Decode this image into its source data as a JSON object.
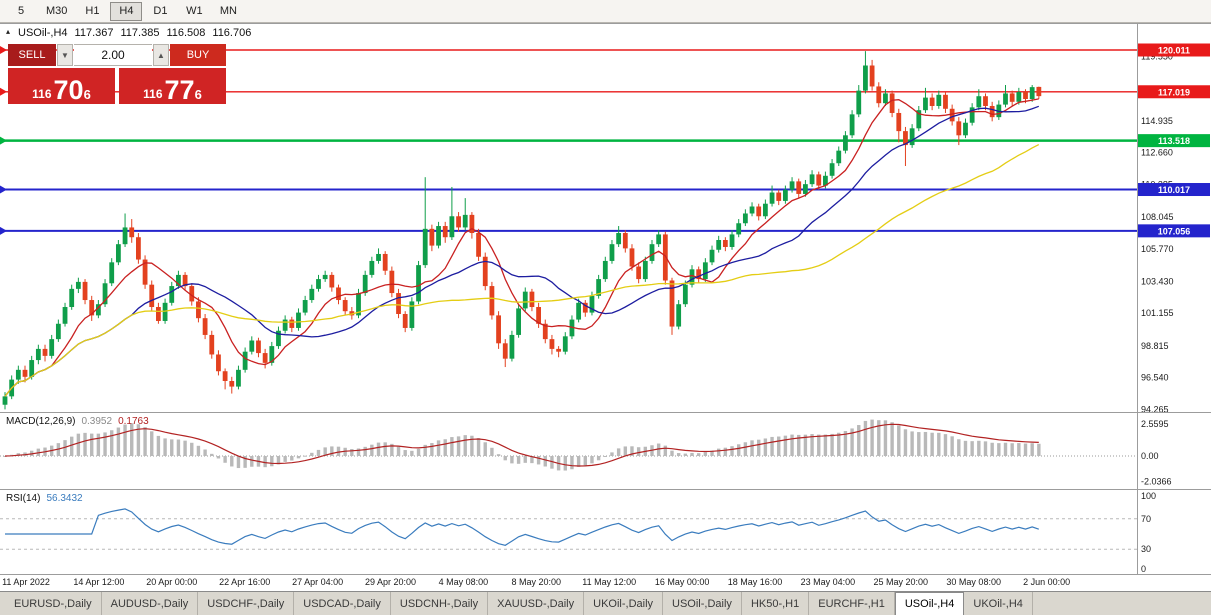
{
  "toolbar": {
    "timeframes": [
      {
        "label": "5",
        "active": false
      },
      {
        "label": "M30",
        "active": false
      },
      {
        "label": "H1",
        "active": false
      },
      {
        "label": "H4",
        "active": true
      },
      {
        "label": "D1",
        "active": false
      },
      {
        "label": "W1",
        "active": false
      },
      {
        "label": "MN",
        "active": false
      }
    ]
  },
  "chart_header": {
    "symbol": "USOil-,H4",
    "open": "117.367",
    "high": "117.385",
    "low": "116.508",
    "close": "116.706",
    "toggle_icon": "▴"
  },
  "trade_panel": {
    "sell_label": "SELL",
    "buy_label": "BUY",
    "volume": "2.00",
    "bid": {
      "small": "116",
      "big": "70",
      "sup": "6"
    },
    "ask": {
      "small": "116",
      "big": "77",
      "sup": "6"
    }
  },
  "chart_data": {
    "type": "candlestick",
    "symbol": "USOil-,H4",
    "timeframe": "H4",
    "current_bar": {
      "open": 117.367,
      "high": 117.385,
      "low": 116.508,
      "close": 116.706
    },
    "ylim": [
      94.265,
      121.3
    ],
    "grid": false,
    "candles": [
      [
        94.6,
        95.5,
        94.27,
        95.2
      ],
      [
        95.2,
        96.7,
        95.0,
        96.4
      ],
      [
        96.4,
        97.4,
        96.1,
        97.1
      ],
      [
        97.1,
        97.4,
        96.2,
        96.6
      ],
      [
        96.6,
        98.1,
        96.4,
        97.8
      ],
      [
        97.8,
        98.9,
        97.5,
        98.6
      ],
      [
        98.6,
        98.9,
        97.7,
        98.1
      ],
      [
        98.1,
        99.6,
        97.9,
        99.3
      ],
      [
        99.3,
        100.7,
        99.1,
        100.4
      ],
      [
        100.4,
        101.9,
        100.2,
        101.6
      ],
      [
        101.6,
        103.2,
        101.4,
        102.9
      ],
      [
        102.9,
        103.7,
        102.6,
        103.4
      ],
      [
        103.4,
        103.6,
        101.8,
        102.1
      ],
      [
        102.1,
        102.4,
        100.6,
        101.0
      ],
      [
        101.0,
        102.1,
        100.8,
        101.8
      ],
      [
        101.8,
        103.6,
        101.6,
        103.3
      ],
      [
        103.3,
        105.1,
        103.1,
        104.8
      ],
      [
        104.8,
        106.4,
        104.6,
        106.1
      ],
      [
        106.1,
        108.3,
        105.9,
        107.3
      ],
      [
        107.3,
        107.9,
        106.2,
        106.6
      ],
      [
        106.6,
        106.9,
        104.7,
        105.0
      ],
      [
        105.0,
        105.3,
        102.9,
        103.2
      ],
      [
        103.2,
        103.5,
        101.3,
        101.6
      ],
      [
        101.6,
        101.9,
        100.4,
        100.6
      ],
      [
        100.6,
        102.2,
        100.4,
        101.9
      ],
      [
        101.9,
        103.4,
        101.7,
        103.1
      ],
      [
        103.1,
        104.2,
        102.9,
        103.9
      ],
      [
        103.9,
        104.1,
        102.8,
        103.1
      ],
      [
        103.1,
        103.3,
        101.7,
        102.0
      ],
      [
        102.0,
        102.3,
        100.5,
        100.8
      ],
      [
        100.8,
        101.1,
        99.3,
        99.6
      ],
      [
        99.6,
        99.9,
        97.9,
        98.2
      ],
      [
        98.2,
        98.5,
        96.7,
        97.0
      ],
      [
        97.0,
        97.2,
        95.7,
        96.3
      ],
      [
        96.3,
        96.6,
        95.4,
        95.9
      ],
      [
        95.9,
        97.4,
        95.7,
        97.1
      ],
      [
        97.1,
        98.7,
        96.9,
        98.4
      ],
      [
        98.4,
        99.5,
        98.2,
        99.2
      ],
      [
        99.2,
        99.4,
        98.0,
        98.3
      ],
      [
        98.3,
        98.6,
        97.2,
        97.6
      ],
      [
        97.6,
        99.1,
        97.4,
        98.8
      ],
      [
        98.8,
        100.2,
        98.6,
        99.9
      ],
      [
        99.9,
        101.0,
        99.7,
        100.7
      ],
      [
        100.7,
        100.9,
        99.8,
        100.1
      ],
      [
        100.1,
        101.5,
        99.9,
        101.2
      ],
      [
        101.2,
        102.4,
        101.0,
        102.1
      ],
      [
        102.1,
        103.2,
        101.9,
        102.9
      ],
      [
        102.9,
        103.9,
        102.7,
        103.6
      ],
      [
        103.6,
        104.2,
        103.4,
        103.9
      ],
      [
        103.9,
        104.1,
        102.7,
        103.0
      ],
      [
        103.0,
        103.2,
        101.8,
        102.1
      ],
      [
        102.1,
        102.3,
        101.0,
        101.3
      ],
      [
        101.3,
        101.6,
        100.7,
        101.0
      ],
      [
        101.0,
        102.9,
        100.8,
        102.6
      ],
      [
        102.6,
        104.2,
        102.4,
        103.9
      ],
      [
        103.9,
        105.2,
        103.7,
        104.9
      ],
      [
        104.9,
        105.8,
        104.7,
        105.4
      ],
      [
        105.4,
        105.6,
        103.9,
        104.2
      ],
      [
        104.2,
        104.5,
        102.3,
        102.6
      ],
      [
        102.6,
        102.9,
        100.8,
        101.1
      ],
      [
        101.1,
        101.3,
        99.8,
        100.1
      ],
      [
        100.1,
        102.3,
        99.9,
        102.0
      ],
      [
        102.0,
        104.9,
        101.8,
        104.6
      ],
      [
        104.6,
        110.9,
        104.4,
        107.2
      ],
      [
        107.2,
        107.5,
        105.6,
        106.0
      ],
      [
        106.0,
        107.7,
        105.8,
        107.4
      ],
      [
        107.4,
        107.7,
        106.2,
        106.6
      ],
      [
        106.6,
        110.2,
        106.4,
        108.1
      ],
      [
        108.1,
        108.4,
        107.0,
        107.3
      ],
      [
        107.3,
        109.4,
        107.1,
        108.2
      ],
      [
        108.2,
        108.4,
        106.5,
        106.9
      ],
      [
        106.9,
        107.2,
        104.9,
        105.2
      ],
      [
        105.2,
        105.5,
        102.8,
        103.1
      ],
      [
        103.1,
        103.4,
        100.7,
        101.0
      ],
      [
        101.0,
        101.3,
        98.6,
        99.0
      ],
      [
        99.0,
        99.3,
        97.3,
        97.9
      ],
      [
        97.9,
        99.9,
        97.7,
        99.6
      ],
      [
        99.6,
        101.8,
        99.4,
        101.5
      ],
      [
        101.5,
        103.0,
        101.3,
        102.7
      ],
      [
        102.7,
        102.9,
        101.3,
        101.6
      ],
      [
        101.6,
        101.9,
        100.1,
        100.4
      ],
      [
        100.4,
        100.7,
        99.0,
        99.3
      ],
      [
        99.3,
        99.6,
        98.2,
        98.6
      ],
      [
        98.6,
        98.8,
        98.0,
        98.4
      ],
      [
        98.4,
        99.8,
        98.2,
        99.5
      ],
      [
        99.5,
        101.0,
        99.3,
        100.7
      ],
      [
        100.7,
        102.2,
        100.5,
        101.9
      ],
      [
        101.9,
        102.1,
        100.9,
        101.2
      ],
      [
        101.2,
        102.7,
        101.0,
        102.4
      ],
      [
        102.4,
        103.9,
        102.2,
        103.6
      ],
      [
        103.6,
        105.2,
        103.4,
        104.9
      ],
      [
        104.9,
        106.4,
        104.7,
        106.1
      ],
      [
        106.1,
        107.4,
        105.9,
        106.9
      ],
      [
        106.9,
        107.1,
        105.5,
        105.8
      ],
      [
        105.8,
        106.1,
        104.2,
        104.5
      ],
      [
        104.5,
        104.8,
        103.3,
        103.6
      ],
      [
        103.6,
        105.2,
        103.4,
        104.9
      ],
      [
        104.9,
        106.4,
        104.7,
        106.1
      ],
      [
        106.1,
        107.1,
        105.9,
        106.8
      ],
      [
        106.8,
        107.0,
        103.2,
        103.5
      ],
      [
        103.5,
        103.7,
        99.6,
        100.2
      ],
      [
        100.2,
        102.1,
        100.0,
        101.8
      ],
      [
        101.8,
        103.5,
        101.6,
        103.2
      ],
      [
        103.2,
        104.6,
        103.0,
        104.3
      ],
      [
        104.3,
        104.5,
        103.3,
        103.6
      ],
      [
        103.6,
        105.1,
        103.4,
        104.8
      ],
      [
        104.8,
        106.0,
        104.6,
        105.7
      ],
      [
        105.7,
        106.7,
        105.5,
        106.4
      ],
      [
        106.4,
        106.6,
        105.6,
        105.9
      ],
      [
        105.9,
        107.1,
        105.7,
        106.8
      ],
      [
        106.8,
        107.9,
        106.6,
        107.6
      ],
      [
        107.6,
        108.6,
        107.4,
        108.3
      ],
      [
        108.3,
        109.1,
        108.1,
        108.8
      ],
      [
        108.8,
        109.0,
        107.8,
        108.1
      ],
      [
        108.1,
        109.3,
        107.9,
        109.0
      ],
      [
        109.0,
        110.3,
        108.8,
        109.8
      ],
      [
        109.8,
        110.0,
        108.9,
        109.2
      ],
      [
        109.2,
        110.3,
        109.0,
        110.0
      ],
      [
        110.0,
        110.9,
        109.8,
        110.6
      ],
      [
        110.6,
        110.8,
        109.4,
        109.7
      ],
      [
        109.7,
        110.7,
        109.5,
        110.4
      ],
      [
        110.4,
        111.4,
        110.2,
        111.1
      ],
      [
        111.1,
        111.3,
        110.0,
        110.3
      ],
      [
        110.3,
        111.3,
        110.1,
        111.0
      ],
      [
        111.0,
        112.2,
        110.8,
        111.9
      ],
      [
        111.9,
        113.1,
        111.7,
        112.8
      ],
      [
        112.8,
        114.2,
        112.6,
        113.9
      ],
      [
        113.9,
        115.7,
        113.7,
        115.4
      ],
      [
        115.4,
        117.5,
        115.2,
        117.1
      ],
      [
        117.1,
        119.93,
        116.9,
        118.9
      ],
      [
        118.9,
        119.3,
        117.1,
        117.4
      ],
      [
        117.4,
        117.7,
        115.9,
        116.2
      ],
      [
        116.2,
        117.2,
        116.0,
        116.9
      ],
      [
        116.9,
        117.1,
        115.2,
        115.5
      ],
      [
        115.5,
        115.8,
        113.4,
        114.2
      ],
      [
        114.2,
        114.5,
        111.7,
        113.2
      ],
      [
        113.2,
        114.7,
        113.0,
        114.4
      ],
      [
        114.4,
        116.0,
        114.2,
        115.7
      ],
      [
        115.7,
        117.3,
        115.5,
        116.6
      ],
      [
        116.6,
        116.9,
        115.7,
        116.0
      ],
      [
        116.0,
        117.1,
        115.8,
        116.8
      ],
      [
        116.8,
        117.0,
        115.5,
        115.8
      ],
      [
        115.8,
        116.1,
        114.6,
        114.9
      ],
      [
        114.9,
        115.2,
        113.2,
        113.9
      ],
      [
        113.9,
        115.1,
        113.7,
        114.8
      ],
      [
        114.8,
        116.2,
        114.6,
        115.9
      ],
      [
        115.9,
        117.2,
        115.7,
        116.7
      ],
      [
        116.7,
        116.9,
        115.7,
        116.0
      ],
      [
        116.0,
        116.3,
        114.9,
        115.2
      ],
      [
        115.2,
        116.4,
        115.0,
        116.1
      ],
      [
        116.1,
        117.5,
        115.9,
        116.9
      ],
      [
        116.9,
        117.1,
        116.0,
        116.3
      ],
      [
        116.3,
        117.3,
        116.1,
        117.0
      ],
      [
        117.0,
        117.2,
        116.2,
        116.5
      ],
      [
        116.5,
        117.5,
        116.3,
        117.35
      ],
      [
        117.367,
        117.385,
        116.508,
        116.706
      ]
    ],
    "hlines": [
      {
        "price": 120.011,
        "label": "120.011",
        "color": "#e81a1a",
        "width": 1.4
      },
      {
        "price": 117.019,
        "label": "117.019",
        "color": "#e81a1a",
        "width": 1.4
      },
      {
        "price": 113.518,
        "label": "113.518",
        "color": "#00b440",
        "width": 2.4
      },
      {
        "price": 110.017,
        "label": "110.017",
        "color": "#2424cc",
        "width": 2
      },
      {
        "price": 107.056,
        "label": "107.056",
        "color": "#2424cc",
        "width": 2
      }
    ],
    "price_ticks": [
      {
        "label": "119.550",
        "value": 119.55
      },
      {
        "label": "117.210",
        "value": 117.21
      },
      {
        "label": "114.935",
        "value": 114.935
      },
      {
        "label": "112.660",
        "value": 112.66
      },
      {
        "label": "110.385",
        "value": 110.385
      },
      {
        "label": "108.045",
        "value": 108.045
      },
      {
        "label": "105.770",
        "value": 105.77
      },
      {
        "label": "103.430",
        "value": 103.43
      },
      {
        "label": "101.155",
        "value": 101.155
      },
      {
        "label": "98.815",
        "value": 98.815
      },
      {
        "label": "96.540",
        "value": 96.54
      },
      {
        "label": "94.265",
        "value": 94.265
      }
    ],
    "time_labels": [
      "11 Apr 2022",
      "14 Apr 12:00",
      "20 Apr 00:00",
      "22 Apr 16:00",
      "27 Apr 04:00",
      "29 Apr 20:00",
      "4 May 08:00",
      "8 May 20:00",
      "11 May 12:00",
      "16 May 00:00",
      "18 May 16:00",
      "23 May 04:00",
      "25 May 20:00",
      "30 May 08:00",
      "2 Jun 00:00"
    ],
    "ma_lines": [
      {
        "name": "MA-fast",
        "period": 8,
        "color": "#c92121"
      },
      {
        "name": "MA-mid",
        "period": 20,
        "color": "#1d1da0"
      },
      {
        "name": "MA-slow",
        "period": 50,
        "color": "#e4cd14"
      }
    ],
    "macd": {
      "label": "MACD(12,26,9)",
      "value_main": "0.3952",
      "value_signal": "0.1763",
      "axis": [
        {
          "label": "2.5595",
          "value": 2.5595
        },
        {
          "label": "0.00",
          "value": 0
        },
        {
          "label": "-2.0366",
          "value": -2.0366
        }
      ],
      "histogram_color": "#b9b9b9",
      "signal_color": "#b22222"
    },
    "rsi": {
      "label": "RSI(14)",
      "value": "56.3432",
      "period": 14,
      "axis": [
        {
          "label": "100",
          "value": 100
        },
        {
          "label": "70",
          "value": 70
        },
        {
          "label": "30",
          "value": 30
        },
        {
          "label": "0",
          "value": 0
        }
      ],
      "levels": [
        70,
        30
      ],
      "line_color": "#3a7cbe"
    },
    "colors": {
      "up": "#0f9e4a",
      "down": "#e3411f",
      "background": "#ffffff",
      "separator": "#9c9c9c"
    }
  },
  "tabs": [
    {
      "label": "EURUSD-,Daily",
      "active": false
    },
    {
      "label": "AUDUSD-,Daily",
      "active": false
    },
    {
      "label": "USDCHF-,Daily",
      "active": false
    },
    {
      "label": "USDCAD-,Daily",
      "active": false
    },
    {
      "label": "USDCNH-,Daily",
      "active": false
    },
    {
      "label": "XAUUSD-,Daily",
      "active": false
    },
    {
      "label": "UKOil-,Daily",
      "active": false
    },
    {
      "label": "USOil-,Daily",
      "active": false
    },
    {
      "label": "HK50-,H1",
      "active": false
    },
    {
      "label": "EURCHF-,H1",
      "active": false
    },
    {
      "label": "USOil-,H4",
      "active": true
    },
    {
      "label": "UKOil-,H4",
      "active": false
    }
  ]
}
